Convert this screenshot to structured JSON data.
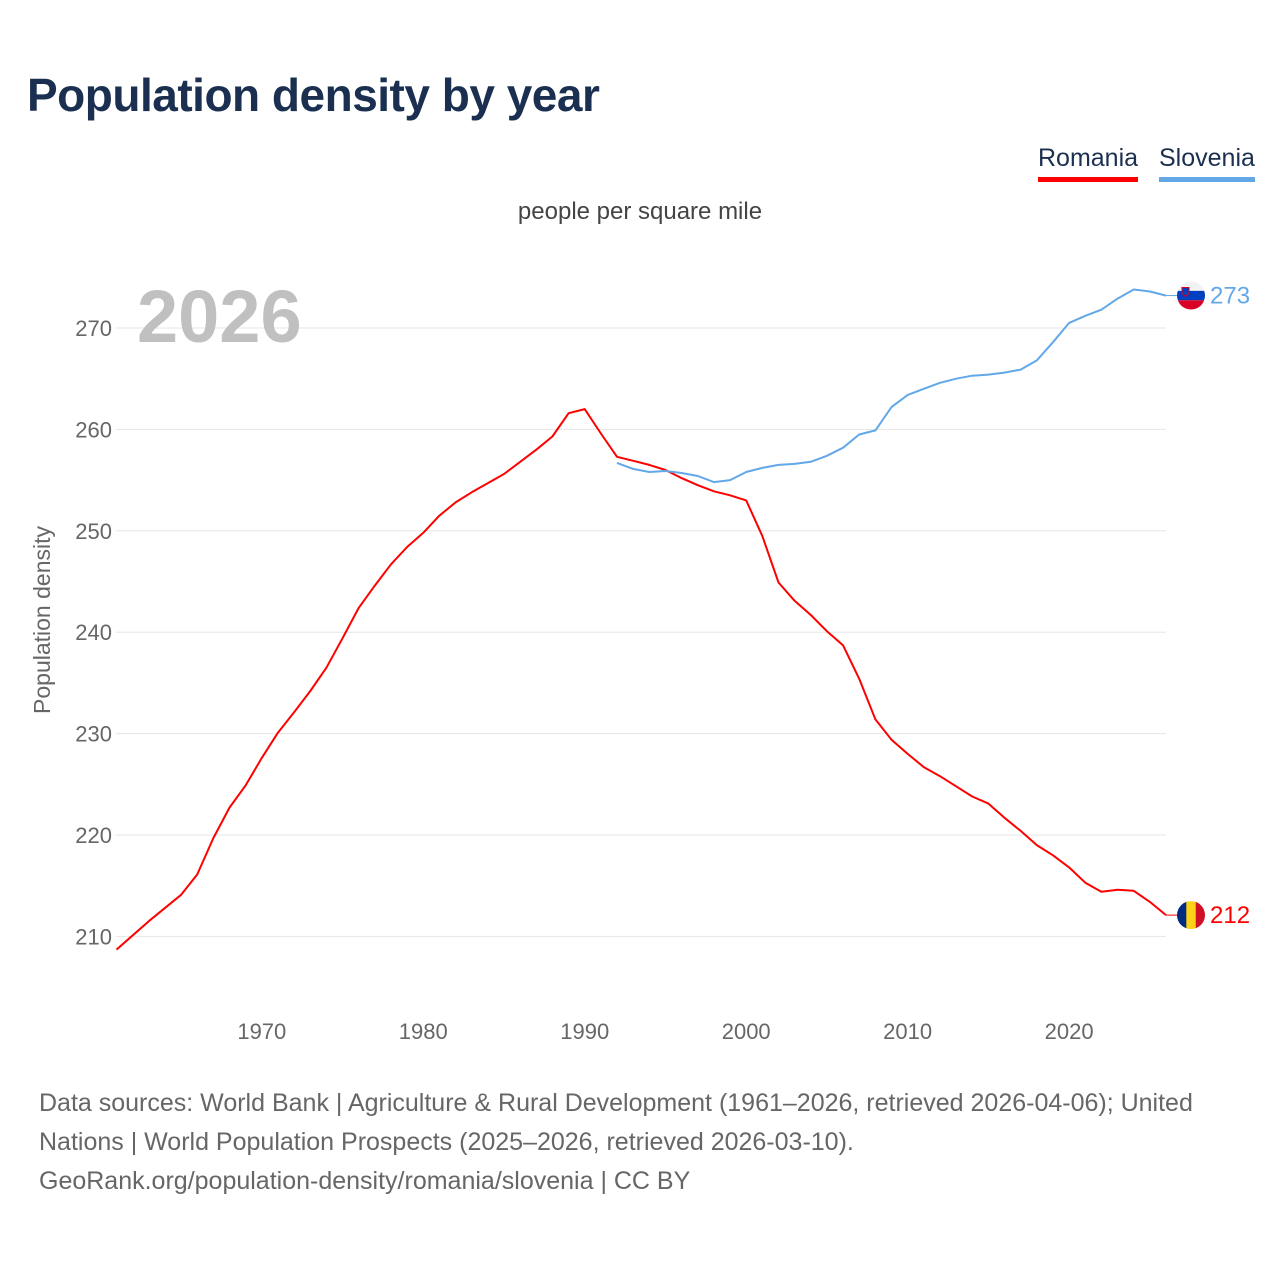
{
  "title": "Population density by year",
  "legend": [
    {
      "label": "Romania",
      "color": "#ff0000"
    },
    {
      "label": "Slovenia",
      "color": "#62a8e8"
    }
  ],
  "footer": {
    "sources": "Data sources: World Bank | Agriculture & Rural Development (1961–2026, retrieved 2026-04-06); United Nations | World Population Prospects (2025–2026, retrieved 2026-03-10).",
    "link": "GeoRank.org/population-density/romania/slovenia | CC BY"
  },
  "chart_data": {
    "type": "line",
    "title": "Population density by year",
    "subtitle": "people per square mile",
    "ylabel": "Population density",
    "xlabel": "",
    "year_watermark": "2026",
    "xlim": [
      1961,
      2026
    ],
    "ylim": [
      203,
      277
    ],
    "xticks": [
      1970,
      1980,
      1990,
      2000,
      2010,
      2020
    ],
    "yticks": [
      210,
      220,
      230,
      240,
      250,
      260,
      270
    ],
    "grid": true,
    "legend_position": "top-right",
    "series": [
      {
        "name": "Romania",
        "color": "#ff0000",
        "end_label": "212",
        "flag": "romania-flag",
        "x": [
          1961,
          1963,
          1965,
          1966,
          1967,
          1968,
          1969,
          1970,
          1971,
          1972,
          1973,
          1974,
          1975,
          1976,
          1977,
          1978,
          1979,
          1980,
          1981,
          1982,
          1983,
          1984,
          1985,
          1986,
          1987,
          1988,
          1989,
          1990,
          1991,
          1992,
          1993,
          1994,
          1995,
          1996,
          1997,
          1998,
          1999,
          2000,
          2001,
          2002,
          2003,
          2004,
          2005,
          2006,
          2007,
          2008,
          2009,
          2010,
          2011,
          2012,
          2013,
          2014,
          2015,
          2016,
          2017,
          2018,
          2019,
          2020,
          2021,
          2022,
          2023,
          2024,
          2025,
          2026
        ],
        "y": [
          208.7,
          211.5,
          214.1,
          216.1,
          219.7,
          222.7,
          224.9,
          227.6,
          230.1,
          232.1,
          234.2,
          236.5,
          239.4,
          242.4,
          244.6,
          246.7,
          248.4,
          249.8,
          251.5,
          252.8,
          253.8,
          254.7,
          255.6,
          256.8,
          258.0,
          259.3,
          261.6,
          262.0,
          259.6,
          257.3,
          256.9,
          256.5,
          256.0,
          255.2,
          254.5,
          253.9,
          253.5,
          253.0,
          249.5,
          244.9,
          243.1,
          241.7,
          240.1,
          238.7,
          235.4,
          231.4,
          229.4,
          228.0,
          226.7,
          225.8,
          224.8,
          223.8,
          223.1,
          221.7,
          220.4,
          219.0,
          218.0,
          216.8,
          215.3,
          214.4,
          214.6,
          214.5,
          213.4,
          212.1
        ]
      },
      {
        "name": "Slovenia",
        "color": "#62a8e8",
        "end_label": "273",
        "flag": "slovenia-flag",
        "x": [
          1992,
          1993,
          1994,
          1995,
          1996,
          1997,
          1998,
          1999,
          2000,
          2001,
          2002,
          2003,
          2004,
          2005,
          2006,
          2007,
          2008,
          2009,
          2010,
          2011,
          2012,
          2013,
          2014,
          2015,
          2016,
          2017,
          2018,
          2019,
          2020,
          2021,
          2022,
          2023,
          2024,
          2025,
          2026
        ],
        "y": [
          256.7,
          256.1,
          255.8,
          255.9,
          255.7,
          255.4,
          254.8,
          255.0,
          255.8,
          256.2,
          256.5,
          256.6,
          256.8,
          257.4,
          258.2,
          259.5,
          259.9,
          262.2,
          263.4,
          264.0,
          264.6,
          265.0,
          265.3,
          265.4,
          265.6,
          265.9,
          266.8,
          268.6,
          270.5,
          271.2,
          271.8,
          272.9,
          273.8,
          273.6,
          273.2
        ]
      }
    ]
  }
}
